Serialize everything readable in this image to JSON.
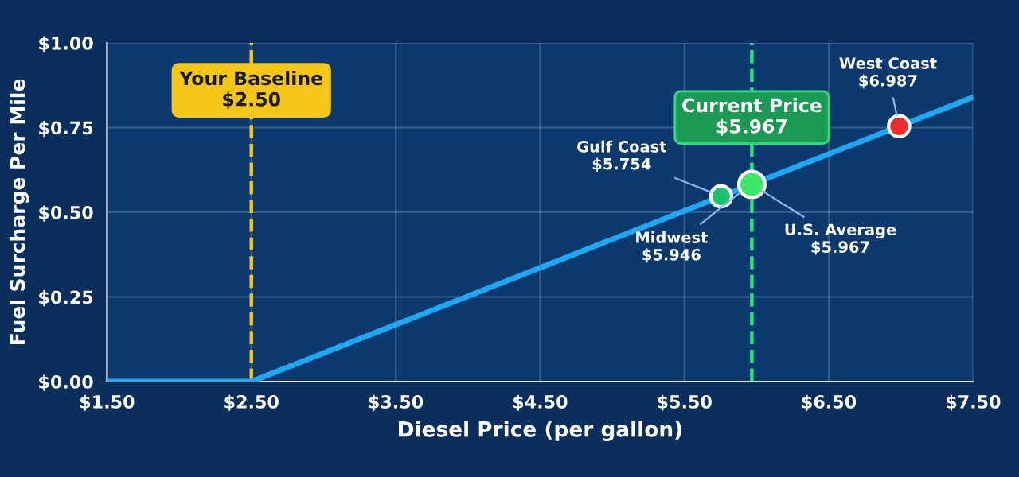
{
  "chart_data": {
    "type": "line",
    "xlabel": "Diesel Price (per gallon)",
    "ylabel": "Fuel Surcharge Per Mile",
    "xlim": [
      1.5,
      7.5
    ],
    "xticks": [
      {
        "value": 1.5,
        "label": "$1.50"
      },
      {
        "value": 2.5,
        "label": "$2.50"
      },
      {
        "value": 3.5,
        "label": "$3.50"
      },
      {
        "value": 4.5,
        "label": "$4.50"
      },
      {
        "value": 5.5,
        "label": "$5.50"
      },
      {
        "value": 6.5,
        "label": "$6.50"
      },
      {
        "value": 7.5,
        "label": "$7.50"
      }
    ],
    "ylim": [
      0,
      1
    ],
    "yticks": [
      {
        "value": 0,
        "label": "$0.00"
      },
      {
        "value": 0.25,
        "label": "$0.25"
      },
      {
        "value": 0.5,
        "label": "$0.50"
      },
      {
        "value": 0.75,
        "label": "$0.75"
      },
      {
        "value": 1,
        "label": "$1.00"
      }
    ],
    "grid": true,
    "legend": false,
    "series": [
      {
        "color": "#1ea7f2",
        "x": [
          1.5,
          2.5,
          7.5
        ],
        "values": [
          0,
          0,
          0.84
        ]
      },
      {
        "type": "scatter",
        "colors": [
          "#1dbf73",
          "#3ee86a",
          "#f02a2a"
        ],
        "x": [
          5.754,
          5.967,
          6.987
        ],
        "values": [
          0.547,
          0.582,
          0.754
        ]
      }
    ],
    "ref_lines": [
      {
        "axis": "x",
        "value": 2.5,
        "label": "Your Baseline\n$2.50",
        "color": "#f5c518",
        "line_style": "dashed"
      },
      {
        "axis": "x",
        "value": 5.967,
        "label": "Current Price\n$5.967",
        "color": "#2ee07a",
        "line_style": "dashed"
      }
    ],
    "annotations": [
      {
        "text": "Gulf Coast\n$5.754",
        "x": 5.754,
        "y": 0.547
      },
      {
        "text": "Midwest\n$5.946",
        "x": 5.946,
        "y": 0.579
      },
      {
        "text": "U.S. Average\n$5.967",
        "x": 5.967,
        "y": 0.582
      },
      {
        "text": "West Coast\n$6.987",
        "x": 6.987,
        "y": 0.754
      }
    ]
  }
}
